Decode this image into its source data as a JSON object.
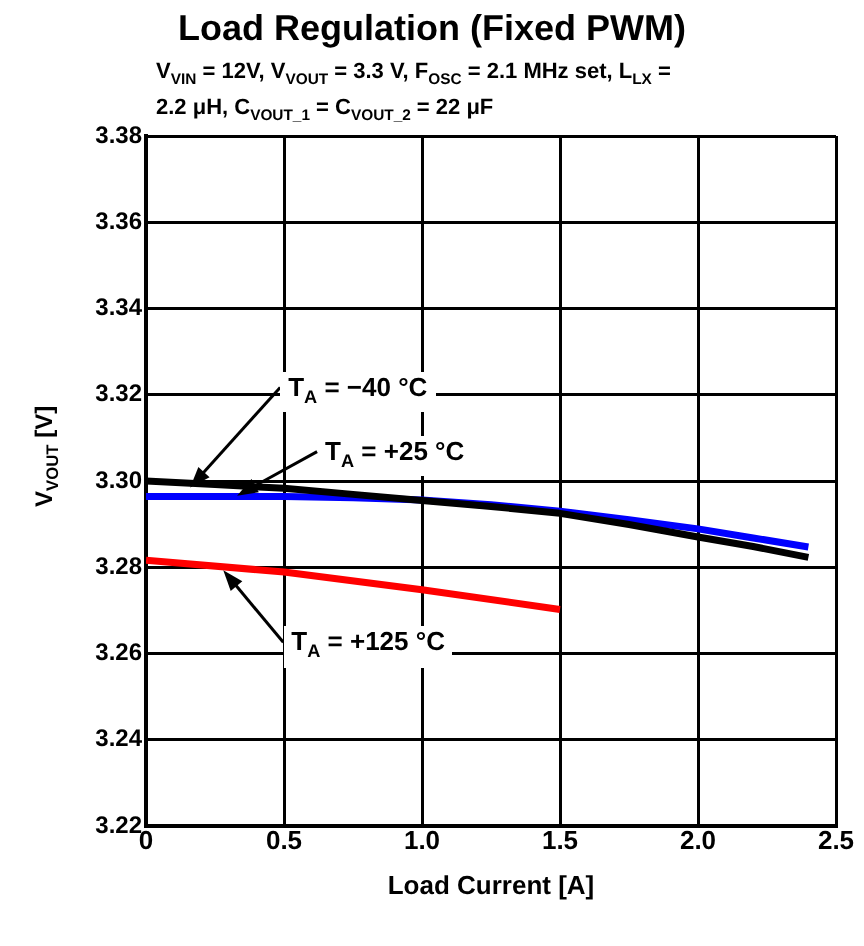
{
  "chart_data": {
    "type": "line",
    "title": "Load Regulation (Fixed PWM)",
    "subtitle": "V$_{VIN}$ = 12V, V$_{VOUT}$ = 3.3 V, F$_{OSC}$ = 2.1 MHz set, L$_{LX}$ = 2.2 μH, C$_{VOUT_1}$ = C$_{VOUT_2}$ = 22 μF",
    "xlabel": "Load Current [A]",
    "ylabel": "V$_{VOUT}$ [V]",
    "x": [
      0,
      0.25,
      0.5,
      0.75,
      1.0,
      1.25,
      1.5,
      1.75,
      2.0,
      2.2,
      2.4
    ],
    "series": [
      {
        "color": "#000000",
        "values": [
          3.3,
          3.2992,
          3.2983,
          3.2969,
          3.2955,
          3.2941,
          3.2925,
          3.2899,
          3.287,
          3.2848,
          3.2823
        ]
      },
      {
        "color": "#0000ff",
        "values": [
          3.2964,
          3.2964,
          3.2964,
          3.2961,
          3.2956,
          3.2945,
          3.293,
          3.291,
          3.2889,
          3.2868,
          3.2847
        ]
      },
      {
        "color": "#ff0000",
        "x": [
          0,
          0.5,
          1.0,
          1.5
        ],
        "values": [
          3.2816,
          3.2789,
          3.2748,
          3.2702
        ]
      }
    ],
    "annotations": [
      {
        "text": "T$_{A}$ = −40 °C",
        "x": 0.16,
        "y": 3.2985
      },
      {
        "text": "T$_{A}$ = +25 °C",
        "x": 0.33,
        "y": 3.2966
      },
      {
        "text": "T$_{A}$ = +125 °C",
        "x": 0.28,
        "y": 3.2793
      }
    ],
    "xlim": [
      0,
      2.5
    ],
    "xticks": [
      0,
      {
        "value": 0.5,
        "label": "0.5"
      },
      {
        "value": 1,
        "label": "1.0"
      },
      {
        "value": 1.5,
        "label": "1.5"
      },
      {
        "value": 2,
        "label": "2.0"
      },
      {
        "value": 2.5,
        "label": "2.5"
      }
    ],
    "ylim": [
      3.22,
      3.38
    ],
    "yticks": [
      {
        "value": 3.22,
        "label": "3.22"
      },
      {
        "value": 3.24,
        "label": "3.24"
      },
      {
        "value": 3.26,
        "label": "3.26"
      },
      {
        "value": 3.28,
        "label": "3.28"
      },
      {
        "value": 3.3,
        "label": "3.30"
      },
      {
        "value": 3.32,
        "label": "3.32"
      },
      {
        "value": 3.34,
        "label": "3.34"
      },
      {
        "value": 3.36,
        "label": "3.36"
      },
      {
        "value": 3.38,
        "label": "3.38"
      }
    ],
    "grid": true,
    "legend": false,
    "marker": "none",
    "line_style": "solid"
  }
}
